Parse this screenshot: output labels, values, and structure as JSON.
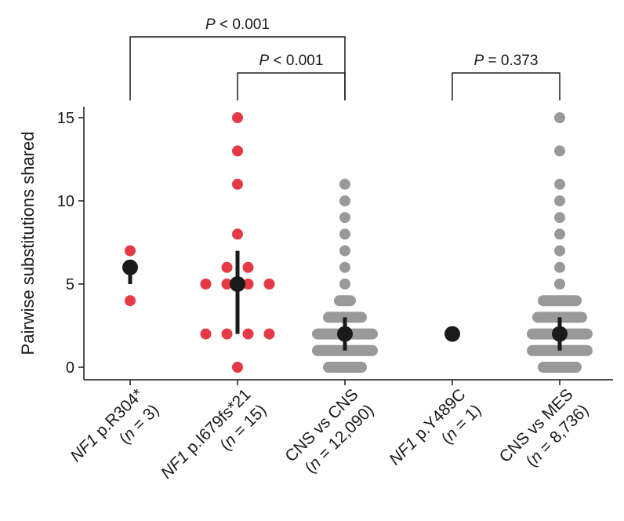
{
  "chart_data": {
    "type": "scatter",
    "subtype": "beeswarm with median and interquartile range",
    "title": "",
    "xlabel": "",
    "ylabel": "Pairwise substitutions shared",
    "ylim": [
      0,
      15
    ],
    "yticks": [
      0,
      5,
      10,
      15
    ],
    "categories": [
      {
        "name_italic": "NF1",
        "name_rest": " p.R304*",
        "n_prefix": "(",
        "n_italic": "n",
        "n_rest": " = 3)",
        "color": "#e63946",
        "points": [
          6,
          4,
          7
        ],
        "summary": {
          "median": 6,
          "q1": 5,
          "q3": 6
        }
      },
      {
        "name_italic": "NF1",
        "name_rest": " p.I679fs*21",
        "n_prefix": "(",
        "n_italic": "n",
        "n_rest": " = 15)",
        "color": "#e63946",
        "points": [
          0,
          2,
          2,
          2,
          2,
          5,
          5,
          5,
          5,
          6,
          6,
          8,
          11,
          13,
          15
        ],
        "summary": {
          "median": 5,
          "q1": 2,
          "q3": 7
        }
      },
      {
        "name_italic": "",
        "name_rest": "CNS vs CNS",
        "n_prefix": "(",
        "n_italic": "n",
        "n_rest": " = 12,090)",
        "color": "#999999",
        "distribution_widths": {
          "0": 4,
          "1": 6,
          "2": 6,
          "3": 4,
          "4": 2,
          "5": 1,
          "6": 1,
          "7": 1,
          "8": 1,
          "9": 1,
          "10": 1,
          "11": 1
        },
        "summary": {
          "median": 2,
          "q1": 1,
          "q3": 3
        }
      },
      {
        "name_italic": "NF1",
        "name_rest": " p.Y489C",
        "n_prefix": "(",
        "n_italic": "n",
        "n_rest": " = 1)",
        "color": "#e63946",
        "points": [],
        "summary": {
          "median": 2,
          "q1": 2,
          "q3": 2
        }
      },
      {
        "name_italic": "",
        "name_rest": "CNS vs MES",
        "n_prefix": "(",
        "n_italic": "n",
        "n_rest": " = 8,736)",
        "color": "#999999",
        "distribution_widths": {
          "0": 4,
          "1": 6,
          "2": 6,
          "3": 5,
          "4": 4,
          "5": 1,
          "6": 1,
          "7": 1,
          "8": 1,
          "9": 1,
          "10": 1,
          "11": 1,
          "13": 1,
          "15": 1
        },
        "summary": {
          "median": 2,
          "q1": 1,
          "q3": 3
        }
      }
    ],
    "comparisons": [
      {
        "from": 0,
        "to": 2,
        "p_italic": "P",
        "p_rest": " < 0.001",
        "level": 1
      },
      {
        "from": 1,
        "to": 2,
        "p_italic": "P",
        "p_rest": " < 0.001",
        "level": 0
      },
      {
        "from": 3,
        "to": 4,
        "p_italic": "P",
        "p_rest": " = 0.373",
        "level": 0
      }
    ],
    "summary_color": "#1a1a1a"
  }
}
